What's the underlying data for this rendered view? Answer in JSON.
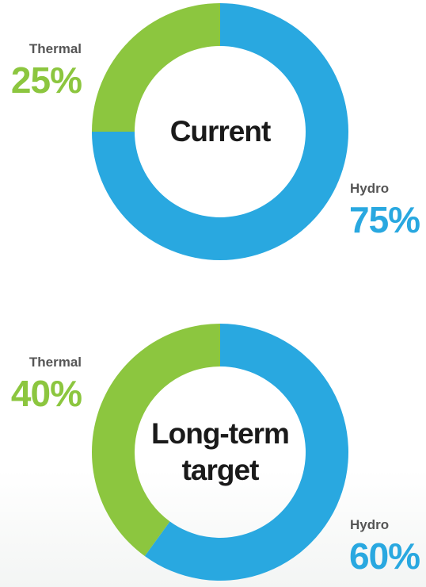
{
  "chart_data": [
    {
      "type": "pie",
      "title": "Current",
      "categories": [
        "Hydro",
        "Thermal"
      ],
      "values": [
        75,
        25
      ],
      "value_labels": [
        "75%",
        "25%"
      ],
      "colors": [
        "#29a8e0",
        "#8cc63f"
      ]
    },
    {
      "type": "pie",
      "title": "Long-term target",
      "categories": [
        "Hydro",
        "Thermal"
      ],
      "values": [
        60,
        40
      ],
      "value_labels": [
        "60%",
        "40%"
      ],
      "colors": [
        "#29a8e0",
        "#8cc63f"
      ]
    }
  ]
}
